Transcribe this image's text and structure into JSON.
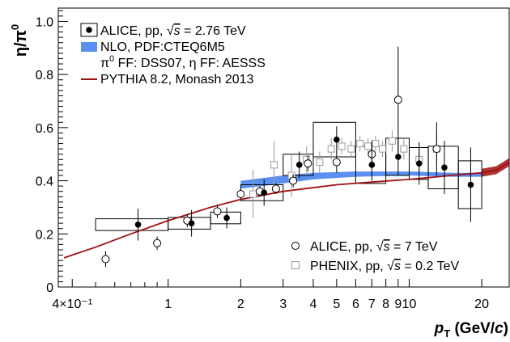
{
  "chart_data": {
    "type": "scatter",
    "xscale": "log",
    "xlim": [
      0.35,
      26
    ],
    "ylim": [
      0,
      1.05
    ],
    "xlabel": {
      "main": "p",
      "sub": "T",
      "unit_open": " (GeV/",
      "unit_c": "c",
      "unit_close": ")"
    },
    "ylabel": {
      "num": "η/π",
      "sup": "0"
    },
    "x_ticks": [
      {
        "value": 0.4,
        "label": "4×10⁻¹"
      },
      {
        "value": 1,
        "label": "1"
      },
      {
        "value": 2,
        "label": "2"
      },
      {
        "value": 3,
        "label": "3"
      },
      {
        "value": 4,
        "label": "4"
      },
      {
        "value": 5,
        "label": "5"
      },
      {
        "value": 6,
        "label": "6"
      },
      {
        "value": 7,
        "label": "7"
      },
      {
        "value": 8,
        "label": "8"
      },
      {
        "value": 9,
        "label": "9"
      },
      {
        "value": 10,
        "label": "10"
      },
      {
        "value": 20,
        "label": "20"
      }
    ],
    "y_ticks": [
      {
        "value": 0,
        "label": "0"
      },
      {
        "value": 0.2,
        "label": "0.2"
      },
      {
        "value": 0.4,
        "label": "0.4"
      },
      {
        "value": 0.6,
        "label": "0.6"
      },
      {
        "value": 0.8,
        "label": "0.8"
      },
      {
        "value": 1.0,
        "label": "1.0"
      }
    ],
    "legend_top": [
      {
        "marker": "filled-circle-box",
        "prefix": "ALICE, pp, ",
        "sqrt": "s",
        "suffix": " = 2.76 TeV"
      },
      {
        "marker": "blue-band",
        "text": "NLO, PDF:CTEQ6M5"
      },
      {
        "marker": "none",
        "pre": "π",
        "sup": "0",
        "rest": " FF: DSS07, η FF: AESSS"
      },
      {
        "marker": "red-line",
        "text": "PYTHIA 8.2, Monash 2013"
      }
    ],
    "legend_bottom": [
      {
        "marker": "open-circle",
        "prefix": "ALICE, pp, ",
        "sqrt": "s",
        "suffix": " = 7 TeV"
      },
      {
        "marker": "open-square",
        "prefix": "PHENIX, pp, ",
        "sqrt": "s",
        "suffix": " = 0.2 TeV"
      }
    ],
    "series": [
      {
        "name": "ALICE, pp, √s = 2.76 TeV",
        "marker": "filled-circle",
        "color": "#000000",
        "points": [
          {
            "x": 0.75,
            "y": 0.235,
            "ey": 0.06,
            "sxl": 0.5,
            "sxh": 1.0,
            "sy": 0.022
          },
          {
            "x": 1.25,
            "y": 0.24,
            "ey": 0.05,
            "sxl": 1.0,
            "sxh": 1.5,
            "sy": 0.022
          },
          {
            "x": 1.75,
            "y": 0.26,
            "ey": 0.04,
            "sxl": 1.5,
            "sxh": 2.0,
            "sy": 0.022
          },
          {
            "x": 2.5,
            "y": 0.355,
            "ey": 0.05,
            "sxl": 2.0,
            "sxh": 3.0,
            "sy": 0.03
          },
          {
            "x": 3.5,
            "y": 0.46,
            "ey": 0.05,
            "sxl": 3.0,
            "sxh": 4.0,
            "sy": 0.04
          },
          {
            "x": 5.0,
            "y": 0.555,
            "ey": 0.05,
            "sxl": 4.0,
            "sxh": 6.0,
            "sy": 0.065
          },
          {
            "x": 7.0,
            "y": 0.46,
            "ey": 0.06,
            "sxl": 6.0,
            "sxh": 8.0,
            "sy": 0.07
          },
          {
            "x": 9.0,
            "y": 0.49,
            "ey": 0.07,
            "sxl": 8.0,
            "sxh": 10.0,
            "sy": 0.07
          },
          {
            "x": 11.0,
            "y": 0.465,
            "ey": 0.08,
            "sxl": 10.0,
            "sxh": 12.0,
            "sy": 0.06
          },
          {
            "x": 14.0,
            "y": 0.45,
            "ey": 0.1,
            "sxl": 12.0,
            "sxh": 16.0,
            "sy": 0.08
          },
          {
            "x": 18.0,
            "y": 0.385,
            "ey": 0.14,
            "sxl": 16.0,
            "sxh": 20.0,
            "sy": 0.09
          }
        ]
      },
      {
        "name": "ALICE, pp, √s = 7 TeV",
        "marker": "open-circle",
        "color": "#000000",
        "points": [
          {
            "x": 0.55,
            "y": 0.105,
            "ey": 0.03
          },
          {
            "x": 0.9,
            "y": 0.165,
            "ey": 0.025
          },
          {
            "x": 1.2,
            "y": 0.25,
            "ey": 0.025
          },
          {
            "x": 1.6,
            "y": 0.285,
            "ey": 0.025
          },
          {
            "x": 2.0,
            "y": 0.35,
            "ey": 0.02
          },
          {
            "x": 2.4,
            "y": 0.36,
            "ey": 0.02
          },
          {
            "x": 2.8,
            "y": 0.37,
            "ey": 0.02
          },
          {
            "x": 3.3,
            "y": 0.4,
            "ey": 0.025
          },
          {
            "x": 3.8,
            "y": 0.465,
            "ey": 0.03
          },
          {
            "x": 5.0,
            "y": 0.47,
            "ey": 0.04
          },
          {
            "x": 7.0,
            "y": 0.5,
            "ey": 0.05
          },
          {
            "x": 9.0,
            "y": 0.705,
            "ey": 0.2
          },
          {
            "x": 13.0,
            "y": 0.52,
            "ey": 0.1
          }
        ]
      },
      {
        "name": "PHENIX, pp, √s = 0.2 TeV",
        "marker": "open-square",
        "color": "#9a9a9a",
        "points": [
          {
            "x": 2.25,
            "y": 0.35,
            "ey": 0.09
          },
          {
            "x": 2.75,
            "y": 0.46,
            "ey": 0.09
          },
          {
            "x": 3.25,
            "y": 0.42,
            "ey": 0.08
          },
          {
            "x": 3.75,
            "y": 0.48,
            "ey": 0.05
          },
          {
            "x": 4.25,
            "y": 0.47,
            "ey": 0.04
          },
          {
            "x": 4.75,
            "y": 0.52,
            "ey": 0.04
          },
          {
            "x": 5.25,
            "y": 0.53,
            "ey": 0.03
          },
          {
            "x": 5.75,
            "y": 0.52,
            "ey": 0.03
          },
          {
            "x": 6.25,
            "y": 0.54,
            "ey": 0.03
          },
          {
            "x": 6.75,
            "y": 0.53,
            "ey": 0.03
          },
          {
            "x": 7.25,
            "y": 0.54,
            "ey": 0.03
          },
          {
            "x": 7.75,
            "y": 0.52,
            "ey": 0.03
          },
          {
            "x": 8.5,
            "y": 0.55,
            "ey": 0.04
          },
          {
            "x": 9.5,
            "y": 0.52,
            "ey": 0.04
          },
          {
            "x": 11.0,
            "y": 0.48,
            "ey": 0.05
          },
          {
            "x": 13.0,
            "y": 0.52,
            "ey": 0.06
          }
        ]
      }
    ],
    "nlo_band": {
      "color": "#5b8ff0",
      "points": [
        {
          "x": 2.0,
          "lo": 0.37,
          "hi": 0.4
        },
        {
          "x": 3.0,
          "lo": 0.39,
          "hi": 0.42
        },
        {
          "x": 4.0,
          "lo": 0.405,
          "hi": 0.43
        },
        {
          "x": 6.0,
          "lo": 0.415,
          "hi": 0.435
        },
        {
          "x": 10.0,
          "lo": 0.42,
          "hi": 0.435
        },
        {
          "x": 15.0,
          "lo": 0.415,
          "hi": 0.43
        },
        {
          "x": 20.0,
          "lo": 0.415,
          "hi": 0.43
        }
      ]
    },
    "pythia": {
      "color": "#a01010",
      "points": [
        {
          "x": 0.37,
          "y": 0.11
        },
        {
          "x": 0.5,
          "y": 0.15
        },
        {
          "x": 0.7,
          "y": 0.2
        },
        {
          "x": 1.0,
          "y": 0.25
        },
        {
          "x": 1.5,
          "y": 0.3
        },
        {
          "x": 2.0,
          "y": 0.33
        },
        {
          "x": 3.0,
          "y": 0.36
        },
        {
          "x": 5.0,
          "y": 0.385
        },
        {
          "x": 7.0,
          "y": 0.395
        },
        {
          "x": 10.0,
          "y": 0.405
        },
        {
          "x": 15.0,
          "y": 0.42
        },
        {
          "x": 20.0,
          "y": 0.43
        },
        {
          "x": 23.0,
          "y": 0.44
        },
        {
          "x": 26.0,
          "y": 0.47
        }
      ],
      "band_x_start": 18.0
    }
  }
}
